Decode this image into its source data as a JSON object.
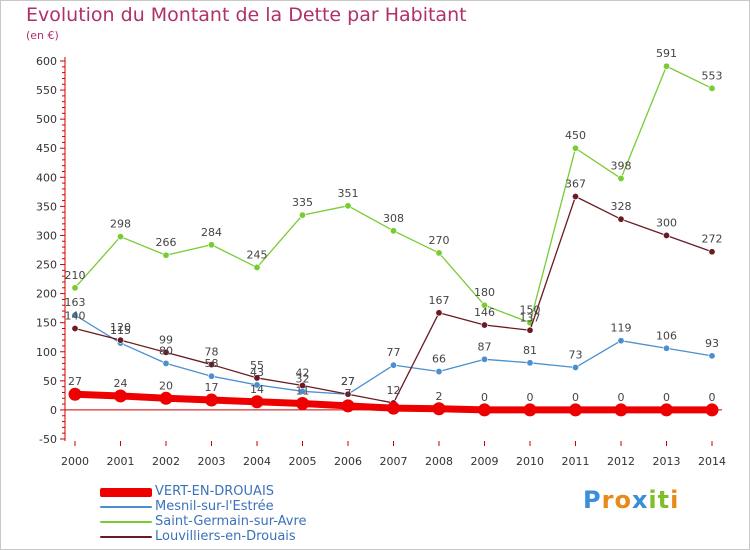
{
  "header": {
    "title": "Evolution du Montant de la Dette par Habitant",
    "unit": "(en €)"
  },
  "colors": {
    "title": "#b0306a",
    "axis": "#cc0000",
    "legend_text": "#3b72b8"
  },
  "chart_data": {
    "type": "line",
    "title": "Evolution du Montant de la Dette par Habitant",
    "subtitle": "(en €)",
    "xlabel": "",
    "ylabel": "",
    "x": [
      2000,
      2001,
      2002,
      2003,
      2004,
      2005,
      2006,
      2007,
      2008,
      2009,
      2010,
      2011,
      2012,
      2013,
      2014
    ],
    "ylim": [
      -50,
      600
    ],
    "yticks": [
      -50,
      0,
      50,
      100,
      150,
      200,
      250,
      300,
      350,
      400,
      450,
      500,
      550,
      600
    ],
    "grid": false,
    "legend_position": "bottom-left",
    "series": [
      {
        "name": "VERT-EN-DROUAIS",
        "color": "#ee0000",
        "values": [
          27,
          24,
          20,
          17,
          14,
          11,
          7,
          3,
          2,
          0,
          0,
          0,
          0,
          0,
          0
        ],
        "labels": [
          "27",
          "24",
          "20",
          "17",
          "14",
          "11",
          "7",
          "",
          "2",
          "0",
          "0",
          "0",
          "0",
          "0",
          "0"
        ]
      },
      {
        "name": "Mesnil-sur-l'Estrée",
        "color": "#4a8fd0",
        "values": [
          163,
          115,
          80,
          58,
          43,
          32,
          27,
          77,
          66,
          87,
          81,
          73,
          119,
          106,
          93
        ],
        "labels": [
          "163",
          "115",
          "80",
          "58",
          "43",
          "32",
          "27",
          "77",
          "66",
          "87",
          "81",
          "73",
          "119",
          "106",
          "93"
        ]
      },
      {
        "name": "Saint-Germain-sur-Avre",
        "color": "#77cc33",
        "values": [
          210,
          298,
          266,
          284,
          245,
          335,
          351,
          308,
          270,
          180,
          150,
          450,
          398,
          591,
          553
        ],
        "labels": [
          "210",
          "298",
          "266",
          "284",
          "245",
          "335",
          "351",
          "308",
          "270",
          "180",
          "150",
          "450",
          "398",
          "591",
          "553"
        ]
      },
      {
        "name": "Louvilliers-en-Drouais",
        "color": "#6b1a22",
        "values": [
          140,
          120,
          99,
          78,
          55,
          42,
          27,
          12,
          167,
          146,
          137,
          367,
          328,
          300,
          272
        ],
        "labels": [
          "140",
          "120",
          "99",
          "78",
          "55",
          "42",
          "27",
          "12",
          "167",
          "146",
          "137",
          "367",
          "328",
          "300",
          "272"
        ]
      }
    ]
  },
  "legend": {
    "items": [
      {
        "label": "VERT-EN-DROUAIS",
        "color": "#ee0000"
      },
      {
        "label": "Mesnil-sur-l'Estrée",
        "color": "#4a8fd0"
      },
      {
        "label": "Saint-Germain-sur-Avre",
        "color": "#77cc33"
      },
      {
        "label": "Louvilliers-en-Drouais",
        "color": "#6b1a22"
      }
    ]
  },
  "logo": {
    "text": "Proxiti",
    "letter_colors": [
      "#3a8fd8",
      "#e88a1a",
      "#e88a1a",
      "#3a8fd8",
      "#7fbf2a",
      "#7fbf2a",
      "#e88a1a"
    ]
  }
}
